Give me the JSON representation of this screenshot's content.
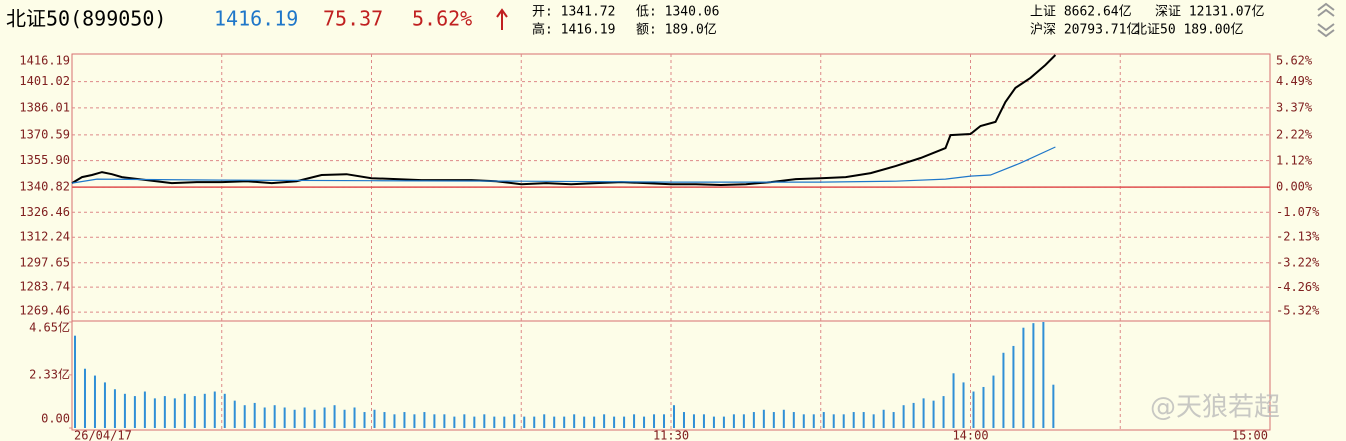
{
  "header": {
    "name": "北证50(899050)",
    "last": "1416.19",
    "change": "75.37",
    "change_pct": "5.62%",
    "open": "开: 1341.72",
    "low": "低: 1340.06",
    "high": "高: 1416.19",
    "amount": "额: 189.0亿",
    "sh": "上证 8662.64亿",
    "sz": "深证 12131.07亿",
    "hs": "沪深 20793.71亿",
    "bz": "北证50 189.00亿"
  },
  "watermark": "@天狼若超",
  "chart_data": [
    {
      "type": "line",
      "xlim": [
        0,
        240
      ],
      "ylim": [
        1265.0,
        1416.19
      ],
      "y2lim": [
        -5.65,
        5.62
      ],
      "grid": true,
      "ref_line": 1340.82,
      "xticks": [
        {
          "value": 0,
          "label": "26/04/17"
        },
        {
          "value": 30,
          "label": null
        },
        {
          "value": 60,
          "label": null
        },
        {
          "value": 90,
          "label": null
        },
        {
          "value": 120,
          "label": "11:30"
        },
        {
          "value": 150,
          "label": null
        },
        {
          "value": 180,
          "label": "14:00"
        },
        {
          "value": 210,
          "label": null
        },
        {
          "value": 240,
          "label": "15:00"
        }
      ],
      "yticks": [
        1416.19,
        1401.02,
        1386.01,
        1370.59,
        {
          "value": 1355.9,
          "label": "1355.90"
        },
        1340.82,
        1326.46,
        1312.24,
        1297.65,
        1283.74,
        1269.46
      ],
      "y2ticks": [
        {
          "value": 5.62,
          "label": "5.62%"
        },
        {
          "value": 4.49,
          "label": "4.49%"
        },
        {
          "value": 3.37,
          "label": "3.37%"
        },
        {
          "value": 2.22,
          "label": "2.22%"
        },
        {
          "value": 1.12,
          "label": "1.12%"
        },
        {
          "value": 0,
          "label": "0.00%"
        },
        {
          "value": -1.07,
          "label": "-1.07%"
        },
        {
          "value": -2.13,
          "label": "-2.13%"
        },
        {
          "value": -3.22,
          "label": "-3.22%"
        },
        {
          "value": -4.26,
          "label": "-4.26%"
        },
        {
          "value": -5.32,
          "label": "-5.32%"
        }
      ],
      "series": [
        {
          "color": "#000000",
          "x": [
            0,
            2,
            4,
            6,
            8,
            10,
            15,
            20,
            25,
            30,
            35,
            40,
            45,
            50,
            55,
            60,
            65,
            70,
            75,
            80,
            85,
            90,
            95,
            100,
            105,
            110,
            115,
            120,
            125,
            130,
            135,
            140,
            145,
            150,
            155,
            160,
            165,
            170,
            175,
            176,
            180,
            182,
            185,
            187,
            189,
            192,
            195,
            197
          ],
          "values": [
            1343.1,
            1346.5,
            1347.7,
            1349.4,
            1348.2,
            1346.5,
            1344.8,
            1343.1,
            1343.7,
            1343.7,
            1344.2,
            1343.1,
            1344.2,
            1347.7,
            1348.2,
            1345.9,
            1345.4,
            1344.8,
            1344.8,
            1344.8,
            1344.2,
            1342.5,
            1343.1,
            1342.5,
            1343.1,
            1343.7,
            1343.1,
            1342.5,
            1342.5,
            1342.0,
            1342.5,
            1343.7,
            1345.4,
            1345.9,
            1346.5,
            1348.8,
            1352.8,
            1357.4,
            1363.1,
            1370.5,
            1371.1,
            1375.7,
            1378.0,
            1389.4,
            1397.4,
            1403.1,
            1410.5,
            1416.19
          ]
        },
        {
          "color": "#1f77c9",
          "x": [
            0,
            5,
            30,
            60,
            90,
            120,
            150,
            165,
            175,
            180,
            184,
            190,
            197
          ],
          "values": [
            1343.1,
            1345.4,
            1344.8,
            1344.5,
            1344.2,
            1343.7,
            1343.7,
            1344.2,
            1345.4,
            1347.1,
            1347.7,
            1354.5,
            1363.7
          ]
        }
      ]
    },
    {
      "type": "bar",
      "xlim": [
        0,
        240
      ],
      "ylim": [
        0,
        4.65
      ],
      "color": "#2f8fd6",
      "yticks": [
        {
          "value": 4.65,
          "label": "4.65亿"
        },
        {
          "value": 2.33,
          "label": "2.33亿"
        },
        {
          "value": 0,
          "label": "0.00"
        }
      ],
      "x": [
        0,
        2,
        4,
        6,
        8,
        10,
        12,
        14,
        16,
        18,
        20,
        22,
        24,
        26,
        28,
        30,
        32,
        34,
        36,
        38,
        40,
        42,
        44,
        46,
        48,
        50,
        52,
        54,
        56,
        58,
        60,
        62,
        64,
        66,
        68,
        70,
        72,
        74,
        76,
        78,
        80,
        82,
        84,
        86,
        88,
        90,
        92,
        94,
        96,
        98,
        100,
        102,
        104,
        106,
        108,
        110,
        112,
        114,
        116,
        118,
        120,
        122,
        124,
        126,
        128,
        130,
        132,
        134,
        136,
        138,
        140,
        142,
        144,
        146,
        148,
        150,
        152,
        154,
        156,
        158,
        160,
        162,
        164,
        166,
        168,
        170,
        172,
        174,
        176,
        178,
        180,
        182,
        184,
        186,
        188,
        190,
        192,
        194,
        196
      ],
      "values": [
        4.05,
        2.6,
        2.3,
        2.0,
        1.7,
        1.5,
        1.4,
        1.6,
        1.3,
        1.4,
        1.3,
        1.5,
        1.4,
        1.5,
        1.6,
        1.5,
        1.2,
        1.0,
        1.1,
        0.9,
        1.0,
        0.9,
        0.8,
        0.9,
        0.8,
        0.9,
        1.0,
        0.8,
        0.9,
        0.7,
        0.8,
        0.7,
        0.6,
        0.7,
        0.6,
        0.7,
        0.6,
        0.6,
        0.5,
        0.6,
        0.5,
        0.6,
        0.5,
        0.5,
        0.6,
        0.5,
        0.5,
        0.6,
        0.5,
        0.5,
        0.6,
        0.5,
        0.5,
        0.6,
        0.5,
        0.5,
        0.6,
        0.5,
        0.6,
        0.6,
        1.0,
        0.7,
        0.6,
        0.6,
        0.5,
        0.5,
        0.6,
        0.6,
        0.7,
        0.8,
        0.7,
        0.8,
        0.7,
        0.6,
        0.6,
        0.7,
        0.6,
        0.6,
        0.7,
        0.7,
        0.6,
        0.8,
        0.7,
        1.0,
        1.1,
        1.3,
        1.2,
        1.4,
        2.4,
        2.0,
        1.6,
        1.8,
        2.3,
        3.3,
        3.6,
        4.4,
        4.6,
        4.65,
        1.9
      ]
    }
  ]
}
